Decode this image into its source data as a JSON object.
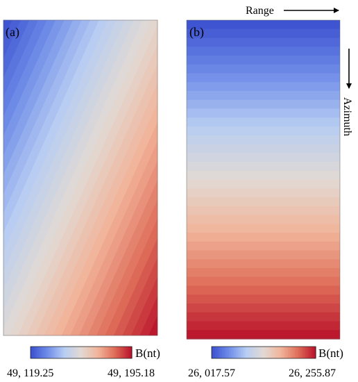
{
  "chart_data": [
    {
      "type": "heatmap",
      "panel_label": "(a)",
      "field": "diagonal-gradient",
      "colormap": [
        "#3a4fcf",
        "#6f8ce8",
        "#b7cdf2",
        "#e2d9d3",
        "#f1b49a",
        "#de6c58",
        "#b8102a"
      ],
      "colorbar": {
        "label": "B(nt)",
        "min_label": "49, 119.25",
        "max_label": "49, 195.18",
        "min": 49119.25,
        "max": 49195.18
      }
    },
    {
      "type": "heatmap",
      "panel_label": "(b)",
      "field": "vertical-gradient",
      "colormap": [
        "#3a4fcf",
        "#6f8ce8",
        "#b7cdf2",
        "#e2d9d3",
        "#f1b49a",
        "#de6c58",
        "#b8102a"
      ],
      "colorbar": {
        "label": "B(nt)",
        "min_label": "26, 017.57",
        "max_label": "26, 255.87",
        "min": 26017.57,
        "max": 26255.87
      },
      "axes": {
        "range_label": "Range",
        "azimuth_label": "Azimuth"
      }
    }
  ]
}
